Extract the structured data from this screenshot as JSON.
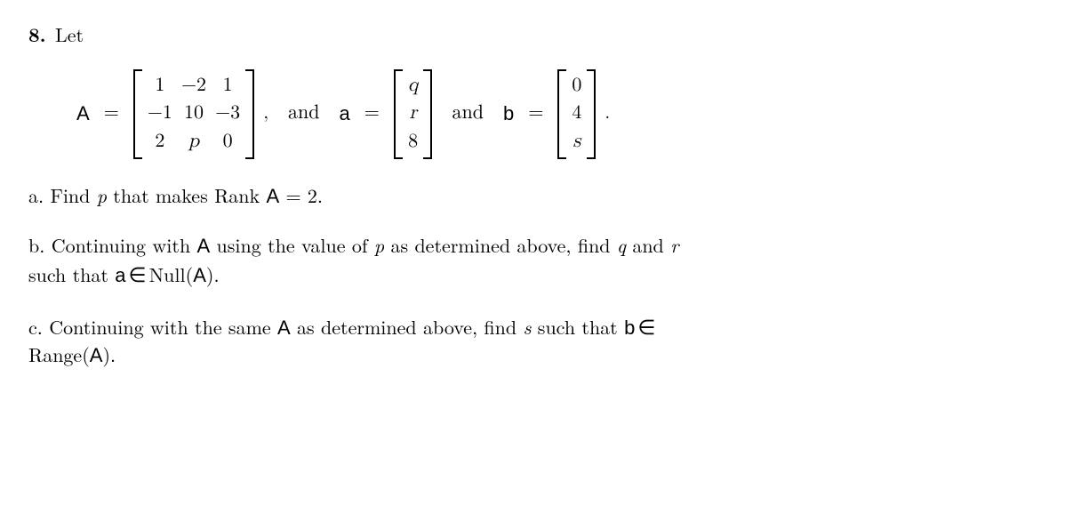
{
  "problem": {
    "number": "8.",
    "intro": "Let",
    "equation": {
      "A_label": "A",
      "eq": "=",
      "A_matrix": [
        [
          "1",
          "−2",
          "1"
        ],
        [
          "−1",
          "10",
          "−3"
        ],
        [
          "2",
          "p",
          "0"
        ]
      ],
      "comma": ",",
      "and1": "and",
      "a_label": "a",
      "a_vec": [
        "q",
        "r",
        "8"
      ],
      "and2": "and",
      "b_label": "b",
      "b_vec": [
        "0",
        "4",
        "s"
      ],
      "period": "."
    },
    "parts": {
      "a": {
        "label": "a.",
        "t1": "Find ",
        "pvar": "p",
        "t2": " that makes Rank ",
        "Avar": "A",
        "t3": " = 2."
      },
      "b": {
        "label": "b.",
        "t1": "Continuing with ",
        "Avar1": "A",
        "t2": " using the value of ",
        "pvar": "p",
        "t3": " as determined above, find ",
        "qvar": "q",
        "t4": " and ",
        "rvar": "r",
        "t5": "such that ",
        "avec": "a",
        "mem": "∈",
        "null": "Null(",
        "Avar2": "A",
        "close": ")."
      },
      "c": {
        "label": "c.",
        "t1": "Continuing with the same ",
        "Avar1": "A",
        "t2": " as determined above, find ",
        "svar": "s",
        "t3": " such that ",
        "bvec": "b",
        "mem": "∈",
        "range": "Range(",
        "Avar2": "A",
        "close": ")."
      }
    }
  },
  "style": {
    "italic_vars": [
      "p",
      "q",
      "r",
      "s"
    ],
    "colors": {
      "text": "#000000",
      "background": "#ffffff"
    },
    "fontsize_pt": 22
  }
}
